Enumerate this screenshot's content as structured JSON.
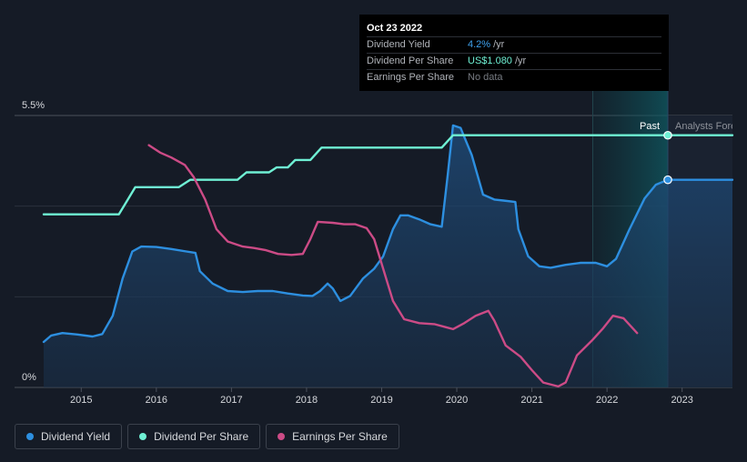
{
  "chart_data": {
    "type": "line",
    "x_ticks": [
      "2015",
      "2016",
      "2017",
      "2018",
      "2019",
      "2020",
      "2021",
      "2022",
      "2023"
    ],
    "y_tick_labels": {
      "top": "5.5%",
      "bottom": "0%"
    },
    "ylim": [
      0,
      5.5
    ],
    "xlim": [
      2014.5,
      2023.67
    ],
    "grid": true,
    "past_label": "Past",
    "forecast_label": "Analysts Forecasts",
    "series": [
      {
        "name": "Dividend Yield",
        "color": "#2d8fe0",
        "fill": true,
        "points": [
          [
            2014.5,
            0.92
          ],
          [
            2014.6,
            1.05
          ],
          [
            2014.75,
            1.1
          ],
          [
            2014.95,
            1.07
          ],
          [
            2015.15,
            1.03
          ],
          [
            2015.28,
            1.08
          ],
          [
            2015.42,
            1.45
          ],
          [
            2015.55,
            2.2
          ],
          [
            2015.68,
            2.75
          ],
          [
            2015.8,
            2.85
          ],
          [
            2016.0,
            2.84
          ],
          [
            2016.2,
            2.8
          ],
          [
            2016.4,
            2.75
          ],
          [
            2016.52,
            2.72
          ],
          [
            2016.58,
            2.35
          ],
          [
            2016.75,
            2.1
          ],
          [
            2016.95,
            1.95
          ],
          [
            2017.15,
            1.93
          ],
          [
            2017.35,
            1.95
          ],
          [
            2017.55,
            1.95
          ],
          [
            2017.75,
            1.9
          ],
          [
            2017.95,
            1.86
          ],
          [
            2018.08,
            1.85
          ],
          [
            2018.18,
            1.95
          ],
          [
            2018.28,
            2.1
          ],
          [
            2018.35,
            2.0
          ],
          [
            2018.45,
            1.75
          ],
          [
            2018.58,
            1.85
          ],
          [
            2018.75,
            2.2
          ],
          [
            2018.9,
            2.4
          ],
          [
            2019.02,
            2.65
          ],
          [
            2019.15,
            3.2
          ],
          [
            2019.25,
            3.48
          ],
          [
            2019.35,
            3.48
          ],
          [
            2019.5,
            3.4
          ],
          [
            2019.65,
            3.3
          ],
          [
            2019.8,
            3.25
          ],
          [
            2019.88,
            4.3
          ],
          [
            2019.95,
            5.3
          ],
          [
            2020.05,
            5.25
          ],
          [
            2020.2,
            4.7
          ],
          [
            2020.35,
            3.9
          ],
          [
            2020.5,
            3.8
          ],
          [
            2020.62,
            3.78
          ],
          [
            2020.78,
            3.75
          ],
          [
            2020.82,
            3.2
          ],
          [
            2020.95,
            2.65
          ],
          [
            2021.1,
            2.45
          ],
          [
            2021.25,
            2.42
          ],
          [
            2021.45,
            2.48
          ],
          [
            2021.65,
            2.52
          ],
          [
            2021.85,
            2.52
          ],
          [
            2022.0,
            2.45
          ],
          [
            2022.12,
            2.6
          ],
          [
            2022.3,
            3.2
          ],
          [
            2022.5,
            3.82
          ],
          [
            2022.65,
            4.1
          ],
          [
            2022.81,
            4.2
          ],
          [
            2023.67,
            4.2
          ]
        ]
      },
      {
        "name": "Dividend Per Share",
        "color": "#6ff0d4",
        "fill": false,
        "points": [
          [
            2014.5,
            3.5
          ],
          [
            2015.5,
            3.5
          ],
          [
            2015.58,
            3.7
          ],
          [
            2015.72,
            4.05
          ],
          [
            2015.85,
            4.05
          ],
          [
            2016.3,
            4.05
          ],
          [
            2016.45,
            4.2
          ],
          [
            2016.6,
            4.2
          ],
          [
            2017.08,
            4.2
          ],
          [
            2017.2,
            4.35
          ],
          [
            2017.5,
            4.35
          ],
          [
            2017.6,
            4.45
          ],
          [
            2017.75,
            4.45
          ],
          [
            2017.85,
            4.6
          ],
          [
            2018.05,
            4.6
          ],
          [
            2018.2,
            4.85
          ],
          [
            2019.8,
            4.85
          ],
          [
            2019.95,
            5.1
          ],
          [
            2023.67,
            5.1
          ]
        ]
      },
      {
        "name": "Earnings Per Share",
        "color": "#cc4b86",
        "fill": false,
        "points": [
          [
            2015.9,
            4.9
          ],
          [
            2016.05,
            4.75
          ],
          [
            2016.2,
            4.65
          ],
          [
            2016.38,
            4.5
          ],
          [
            2016.5,
            4.25
          ],
          [
            2016.65,
            3.8
          ],
          [
            2016.8,
            3.2
          ],
          [
            2016.95,
            2.95
          ],
          [
            2017.15,
            2.85
          ],
          [
            2017.3,
            2.82
          ],
          [
            2017.45,
            2.78
          ],
          [
            2017.62,
            2.7
          ],
          [
            2017.8,
            2.68
          ],
          [
            2017.95,
            2.7
          ],
          [
            2018.05,
            3.0
          ],
          [
            2018.15,
            3.35
          ],
          [
            2018.35,
            3.33
          ],
          [
            2018.5,
            3.3
          ],
          [
            2018.65,
            3.3
          ],
          [
            2018.8,
            3.22
          ],
          [
            2018.9,
            3.0
          ],
          [
            2019.0,
            2.5
          ],
          [
            2019.15,
            1.75
          ],
          [
            2019.3,
            1.38
          ],
          [
            2019.5,
            1.3
          ],
          [
            2019.7,
            1.28
          ],
          [
            2019.85,
            1.22
          ],
          [
            2019.95,
            1.18
          ],
          [
            2020.1,
            1.3
          ],
          [
            2020.25,
            1.45
          ],
          [
            2020.42,
            1.55
          ],
          [
            2020.5,
            1.35
          ],
          [
            2020.65,
            0.85
          ],
          [
            2020.85,
            0.62
          ],
          [
            2021.0,
            0.35
          ],
          [
            2021.15,
            0.1
          ],
          [
            2021.35,
            0.02
          ],
          [
            2021.45,
            0.1
          ],
          [
            2021.6,
            0.65
          ],
          [
            2021.8,
            0.95
          ],
          [
            2021.95,
            1.2
          ],
          [
            2022.08,
            1.45
          ],
          [
            2022.22,
            1.4
          ],
          [
            2022.4,
            1.1
          ]
        ]
      }
    ],
    "markers": [
      {
        "series": "Dividend Per Share",
        "x": 2022.81,
        "y": 5.1
      },
      {
        "series": "Dividend Yield",
        "x": 2022.81,
        "y": 4.2
      }
    ],
    "highlight_band": [
      2021.81,
      2022.81
    ],
    "forecast_start": 2022.81
  },
  "tooltip": {
    "date": "Oct 23 2022",
    "rows": [
      {
        "label": "Dividend Yield",
        "value": "4.2%",
        "unit": "/yr"
      },
      {
        "label": "Dividend Per Share",
        "value": "US$1.080",
        "unit": "/yr"
      },
      {
        "label": "Earnings Per Share",
        "value": "No data",
        "unit": ""
      }
    ]
  },
  "legend": [
    {
      "label": "Dividend Yield",
      "color": "#2d8fe0"
    },
    {
      "label": "Dividend Per Share",
      "color": "#6ff0d4"
    },
    {
      "label": "Earnings Per Share",
      "color": "#cc4b86"
    }
  ]
}
